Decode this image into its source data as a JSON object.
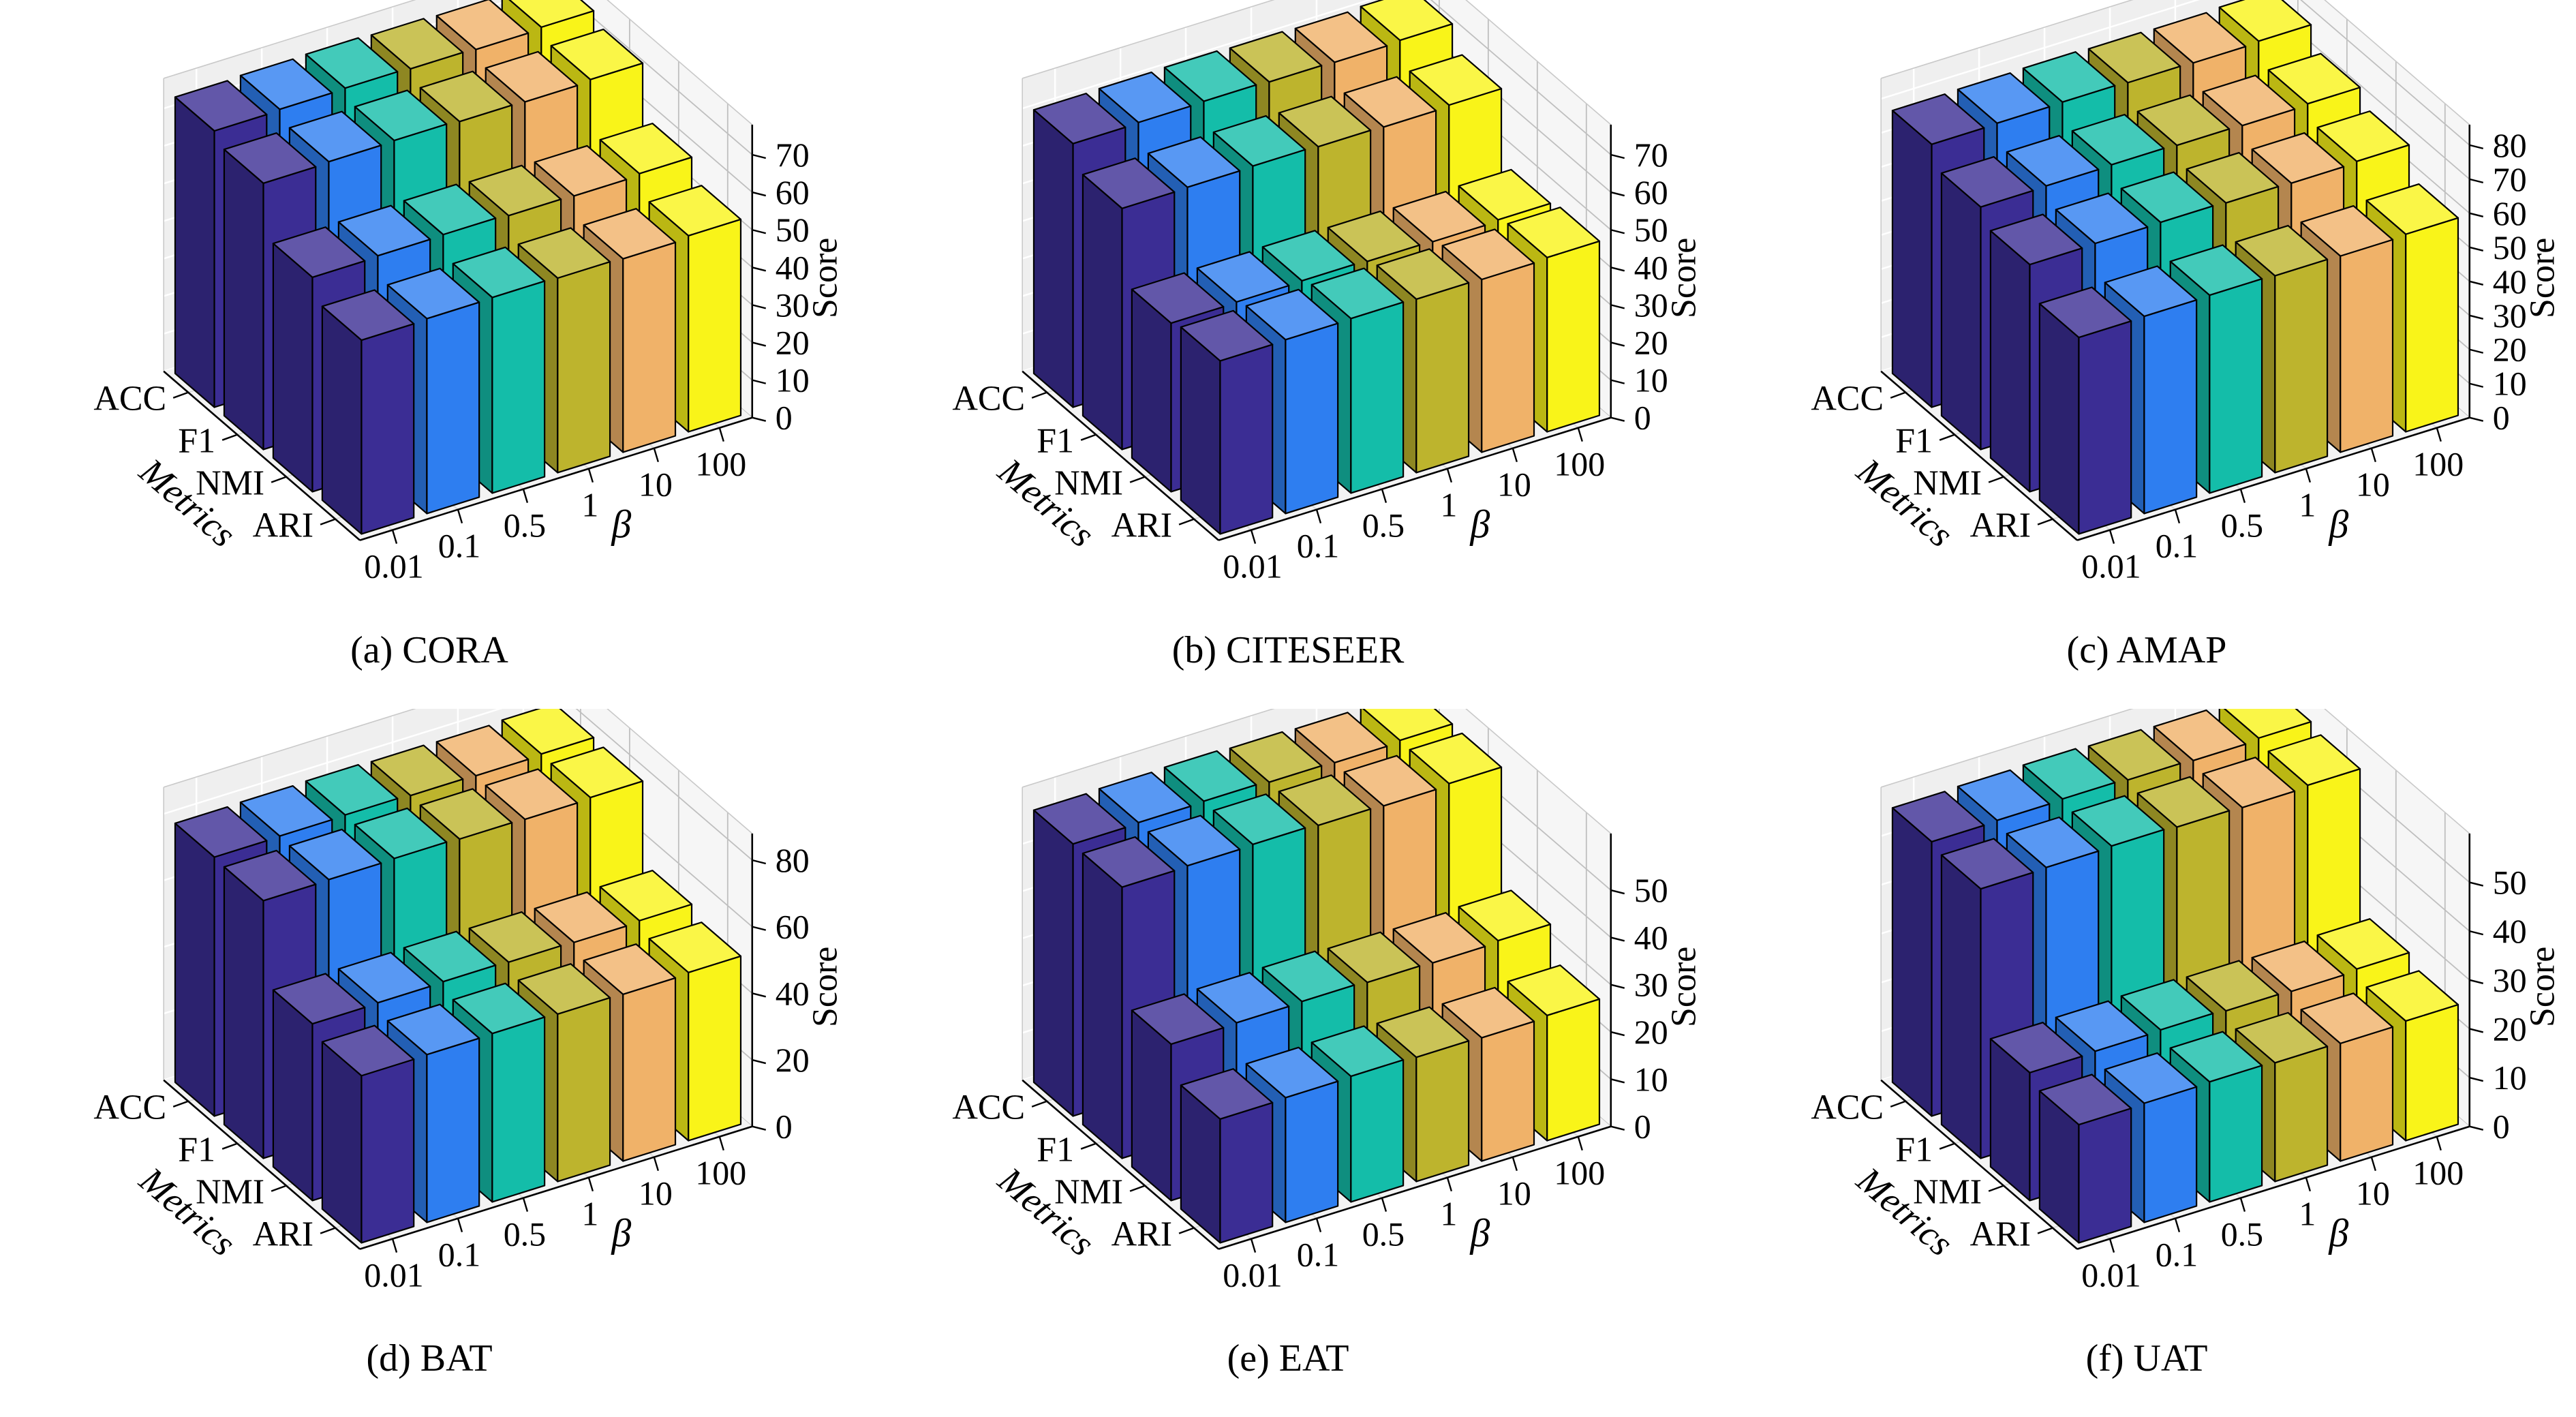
{
  "figure": {
    "type": "3d-bar-hyperparameter-sensitivity-figure",
    "background": "#ffffff",
    "bar_colors": [
      "#3b2d94",
      "#2e7ef0",
      "#14bda9",
      "#bdb42d",
      "#f0b269",
      "#f9f419"
    ],
    "beta_values": [
      "0.01",
      "0.1",
      "0.5",
      "1",
      "10",
      "100"
    ],
    "metrics": [
      "ACC",
      "F1",
      "NMI",
      "ARI"
    ],
    "xlabel": "β",
    "ylabel": "Metrics",
    "zlabel": "Score"
  },
  "chart_data": [
    {
      "type": "bar3d",
      "title": "(a) CORA",
      "dataset": "CORA",
      "xlabel": "β",
      "ylabel": "Metrics",
      "zlabel": "Score",
      "x": [
        "0.01",
        "0.1",
        "0.5",
        "1",
        "10",
        "100"
      ],
      "categories": [
        "ACC",
        "F1",
        "NMI",
        "ARI"
      ],
      "z_ticks": [
        0,
        10,
        20,
        30,
        40,
        50,
        60,
        70
      ],
      "zlim": [
        0,
        78
      ],
      "series": [
        {
          "name": "ACC",
          "values": [
            73.6,
            73.9,
            74.1,
            73.8,
            73.5,
            74.0
          ]
        },
        {
          "name": "F1",
          "values": [
            70.9,
            71.2,
            71.4,
            71.0,
            70.8,
            71.3
          ]
        },
        {
          "name": "NMI",
          "values": [
            57.1,
            57.4,
            57.6,
            57.2,
            57.0,
            57.5
          ]
        },
        {
          "name": "ARI",
          "values": [
            51.6,
            51.9,
            52.1,
            51.8,
            51.5,
            52.2
          ]
        }
      ]
    },
    {
      "type": "bar3d",
      "title": "(b) CITESEER",
      "dataset": "CITESEER",
      "xlabel": "β",
      "ylabel": "Metrics",
      "zlabel": "Score",
      "x": [
        "0.01",
        "0.1",
        "0.5",
        "1",
        "10",
        "100"
      ],
      "categories": [
        "ACC",
        "F1",
        "NMI",
        "ARI"
      ],
      "z_ticks": [
        0,
        10,
        20,
        30,
        40,
        50,
        60,
        70
      ],
      "zlim": [
        0,
        78
      ],
      "series": [
        {
          "name": "ACC",
          "values": [
            70.2,
            70.4,
            70.6,
            70.3,
            70.1,
            70.5
          ]
        },
        {
          "name": "F1",
          "values": [
            64.2,
            64.4,
            64.6,
            64.3,
            64.1,
            64.5
          ]
        },
        {
          "name": "NMI",
          "values": [
            44.9,
            45.1,
            45.3,
            45.0,
            44.8,
            45.2
          ]
        },
        {
          "name": "ARI",
          "values": [
            46.1,
            46.3,
            46.5,
            46.2,
            46.0,
            46.4
          ]
        }
      ]
    },
    {
      "type": "bar3d",
      "title": "(c) AMAP",
      "dataset": "AMAP",
      "xlabel": "β",
      "ylabel": "Metrics",
      "zlabel": "Score",
      "x": [
        "0.01",
        "0.1",
        "0.5",
        "1",
        "10",
        "100"
      ],
      "categories": [
        "ACC",
        "F1",
        "NMI",
        "ARI"
      ],
      "z_ticks": [
        0,
        10,
        20,
        30,
        40,
        50,
        60,
        70,
        80
      ],
      "zlim": [
        0,
        86
      ],
      "series": [
        {
          "name": "ACC",
          "values": [
            77.2,
            77.4,
            77.6,
            77.3,
            77.1,
            77.5
          ]
        },
        {
          "name": "F1",
          "values": [
            71.2,
            71.4,
            71.6,
            71.3,
            71.1,
            71.5
          ]
        },
        {
          "name": "NMI",
          "values": [
            66.7,
            66.9,
            67.1,
            66.8,
            66.6,
            67.0
          ]
        },
        {
          "name": "ARI",
          "values": [
            57.7,
            57.9,
            58.1,
            57.8,
            57.6,
            58.0
          ]
        }
      ]
    },
    {
      "type": "bar3d",
      "title": "(d) BAT",
      "dataset": "BAT",
      "xlabel": "β",
      "ylabel": "Metrics",
      "zlabel": "Score",
      "x": [
        "0.01",
        "0.1",
        "0.5",
        "1",
        "10",
        "100"
      ],
      "categories": [
        "ACC",
        "F1",
        "NMI",
        "ARI"
      ],
      "z_ticks": [
        0,
        20,
        40,
        60,
        80
      ],
      "zlim": [
        0,
        88
      ],
      "series": [
        {
          "name": "ACC",
          "values": [
            77.8,
            78.0,
            78.2,
            77.9,
            77.7,
            78.1
          ]
        },
        {
          "name": "F1",
          "values": [
            77.4,
            77.6,
            77.8,
            77.5,
            77.3,
            77.7
          ]
        },
        {
          "name": "NMI",
          "values": [
            53.1,
            53.3,
            53.5,
            53.2,
            53.0,
            53.4
          ]
        },
        {
          "name": "ARI",
          "values": [
            50.2,
            50.4,
            50.6,
            50.3,
            50.1,
            50.5
          ]
        }
      ]
    },
    {
      "type": "bar3d",
      "title": "(e) EAT",
      "dataset": "EAT",
      "xlabel": "β",
      "ylabel": "Metrics",
      "zlabel": "Score",
      "x": [
        "0.01",
        "0.1",
        "0.5",
        "1",
        "10",
        "100"
      ],
      "categories": [
        "ACC",
        "F1",
        "NMI",
        "ARI"
      ],
      "z_ticks": [
        0,
        10,
        20,
        30,
        40,
        50
      ],
      "zlim": [
        0,
        62
      ],
      "series": [
        {
          "name": "ACC",
          "values": [
            57.6,
            57.8,
            58.0,
            57.7,
            57.5,
            57.9
          ]
        },
        {
          "name": "F1",
          "values": [
            57.4,
            57.6,
            57.8,
            57.5,
            57.3,
            57.7
          ]
        },
        {
          "name": "NMI",
          "values": [
            33.1,
            33.3,
            33.5,
            33.2,
            33.0,
            33.4
          ]
        },
        {
          "name": "ARI",
          "values": [
            26.2,
            26.4,
            26.6,
            26.3,
            26.1,
            26.5
          ]
        }
      ]
    },
    {
      "type": "bar3d",
      "title": "(f) UAT",
      "dataset": "UAT",
      "xlabel": "β",
      "ylabel": "Metrics",
      "zlabel": "Score",
      "x": [
        "0.01",
        "0.1",
        "0.5",
        "1",
        "10",
        "100"
      ],
      "categories": [
        "ACC",
        "F1",
        "NMI",
        "ARI"
      ],
      "z_ticks": [
        0,
        10,
        20,
        30,
        40,
        50
      ],
      "zlim": [
        0,
        60
      ],
      "series": [
        {
          "name": "ACC",
          "values": [
            56.2,
            56.4,
            56.6,
            56.3,
            56.1,
            56.5
          ]
        },
        {
          "name": "F1",
          "values": [
            55.2,
            55.4,
            55.6,
            55.3,
            55.1,
            55.5
          ]
        },
        {
          "name": "NMI",
          "values": [
            26.2,
            26.4,
            26.6,
            26.3,
            26.1,
            26.5
          ]
        },
        {
          "name": "ARI",
          "values": [
            24.2,
            24.4,
            24.6,
            24.3,
            24.1,
            24.5
          ]
        }
      ]
    }
  ]
}
